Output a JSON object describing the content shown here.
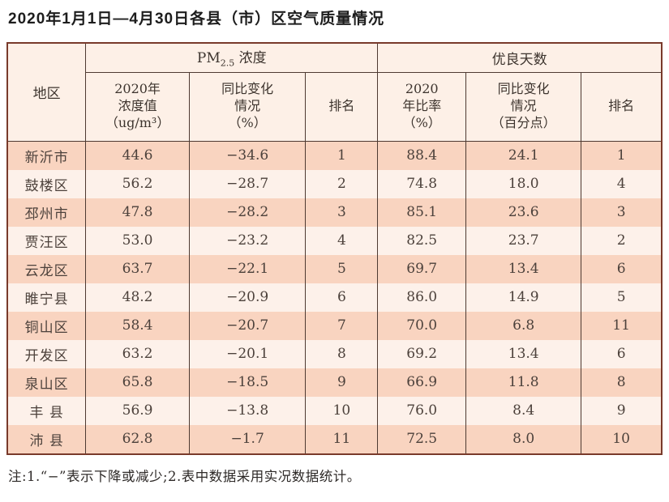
{
  "title": "2020年1月1日—4月30日各县（市）区空气质量情况",
  "table": {
    "region_header": "地区",
    "group1": {
      "main": "PM",
      "sub": "2.5",
      "rest": " 浓度"
    },
    "group2": "优良天数",
    "subheaders": [
      "2020年\n浓度值\n（ug/m³）",
      "同比变化\n情况\n（%）",
      "排名",
      "2020\n年比率\n（%）",
      "同比变化\n情况\n（百分点）",
      "排名"
    ],
    "rows": [
      {
        "region": "新沂市",
        "values": [
          "44.6",
          "−34.6",
          "1",
          "88.4",
          "24.1",
          "1"
        ]
      },
      {
        "region": "鼓楼区",
        "values": [
          "56.2",
          "−28.7",
          "2",
          "74.8",
          "18.0",
          "4"
        ]
      },
      {
        "region": "邳州市",
        "values": [
          "47.8",
          "−28.2",
          "3",
          "85.1",
          "23.6",
          "3"
        ]
      },
      {
        "region": "贾汪区",
        "values": [
          "53.0",
          "−23.2",
          "4",
          "82.5",
          "23.7",
          "2"
        ]
      },
      {
        "region": "云龙区",
        "values": [
          "63.7",
          "−22.1",
          "5",
          "69.7",
          "13.4",
          "6"
        ]
      },
      {
        "region": "睢宁县",
        "values": [
          "48.2",
          "−20.9",
          "6",
          "86.0",
          "14.9",
          "5"
        ]
      },
      {
        "region": "铜山区",
        "values": [
          "58.4",
          "−20.7",
          "7",
          "70.0",
          "6.8",
          "11"
        ]
      },
      {
        "region": "开发区",
        "values": [
          "63.2",
          "−20.1",
          "8",
          "69.2",
          "13.4",
          "6"
        ]
      },
      {
        "region": "泉山区",
        "values": [
          "65.8",
          "−18.5",
          "9",
          "66.9",
          "11.8",
          "8"
        ]
      },
      {
        "region": "丰 县",
        "values": [
          "56.9",
          "−13.8",
          "10",
          "76.0",
          "8.4",
          "9"
        ]
      },
      {
        "region": "沛 县",
        "values": [
          "62.8",
          "−1.7",
          "11",
          "72.5",
          "8.0",
          "10"
        ]
      }
    ]
  },
  "footnote": "注:1.“−”表示下降或减少;2.表中数据采用实况数据统计。",
  "colors": {
    "row_dark": "#f9d4c0",
    "row_light": "#fdf1ea",
    "header_bg": "#fdf0e7",
    "outer_border": "#793a2b",
    "inner_border": "#4e3a32",
    "text": "#4c413b"
  }
}
